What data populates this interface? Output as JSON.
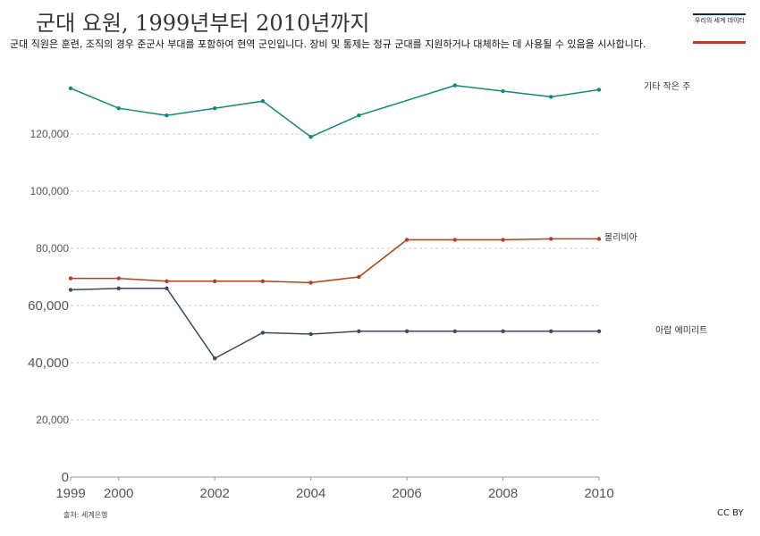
{
  "title": "군대 요원, 1999년부터 2010년까지",
  "subtitle": "군대 직원은 훈련, 조직의 경우 준군사 부대를 포함하여 현역 군인입니다. 장비 및 통제는 정규 군대를 지원하거나 대체하는 데 사용될 수 있음을 시사합니다.",
  "logo": {
    "text": "우리의 세계 데이터"
  },
  "source": "출처: 세계은행",
  "license": "CC BY",
  "colors": {
    "other": "#0f8a7a",
    "bolivia": "#b5401a",
    "uae": "#3a4a63",
    "grid": "#cccccc"
  },
  "chart_data": {
    "type": "line",
    "title": "군대 요원, 1999년부터 2010년까지",
    "xlabel": "",
    "ylabel": "",
    "xlim": [
      1999,
      2010
    ],
    "ylim": [
      0,
      136000
    ],
    "y_ticks": [
      0,
      20000,
      40000,
      60000,
      80000,
      100000,
      120000
    ],
    "y_tick_labels": [
      "0",
      "20,000",
      "40,000",
      "60,000",
      "80,000",
      "100,000",
      "120,000"
    ],
    "x_ticks": [
      1999,
      2000,
      2002,
      2004,
      2006,
      2008,
      2010
    ],
    "x_tick_labels": [
      "1999",
      "2000",
      "2002",
      "2004",
      "2006",
      "2008",
      "2010"
    ],
    "grid": true,
    "series": [
      {
        "name": "기타 작은 주",
        "color": "#0f8a7a",
        "x": [
          1999,
          2000,
          2001,
          2002,
          2003,
          2004,
          2005,
          2007,
          2008,
          2009,
          2010
        ],
        "y": [
          136000,
          129000,
          126500,
          129000,
          131500,
          119000,
          126500,
          137000,
          135000,
          133000,
          135500
        ]
      },
      {
        "name": "볼리비아",
        "color": "#b5401a",
        "x": [
          1999,
          2000,
          2001,
          2002,
          2003,
          2004,
          2005,
          2006,
          2007,
          2008,
          2009,
          2010
        ],
        "y": [
          69500,
          69500,
          68500,
          68500,
          68500,
          68000,
          70000,
          83000,
          83000,
          83000,
          83300,
          83300
        ]
      },
      {
        "name": "아랍 에미리트",
        "color": "#3a4a63",
        "x": [
          1999,
          2000,
          2001,
          2002,
          2003,
          2004,
          2005,
          2006,
          2007,
          2008,
          2009,
          2010
        ],
        "y": [
          65500,
          66000,
          66000,
          41500,
          50500,
          50000,
          51000,
          51000,
          51000,
          51000,
          51000,
          51000
        ]
      }
    ]
  }
}
